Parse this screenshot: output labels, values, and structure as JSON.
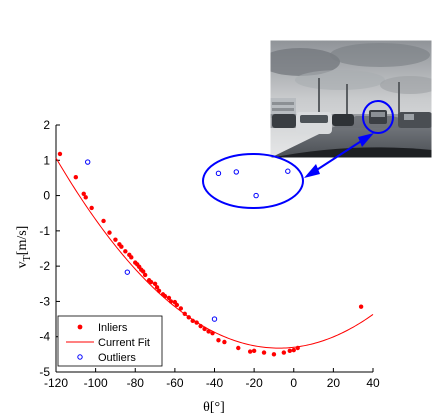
{
  "chart_data": {
    "type": "scatter",
    "xlabel": "θ[°]",
    "ylabel_main": "v",
    "ylabel_sub": "T",
    "ylabel_unit": "[m/s]",
    "xlim": [
      -120,
      40
    ],
    "ylim": [
      -5,
      2
    ],
    "xticks": [
      -120,
      -100,
      -80,
      -60,
      -40,
      -20,
      0,
      20,
      40
    ],
    "yticks": [
      -5,
      -4,
      -3,
      -2,
      -1,
      0,
      1,
      2
    ],
    "grid": false,
    "legend_position": "bottom-left",
    "series": [
      {
        "name": "Inliers",
        "marker": "filled-circle",
        "color": "#ff0000",
        "x": [
          -118,
          -110,
          -106,
          -105,
          -102,
          -96,
          -93,
          -90,
          -88,
          -87,
          -85,
          -83,
          -82,
          -80,
          -79,
          -78,
          -77,
          -76,
          -75,
          -73,
          -72,
          -70,
          -69,
          -68,
          -66,
          -65,
          -63,
          -62,
          -60,
          -59,
          -57,
          -55,
          -53,
          -51,
          -49,
          -47,
          -45,
          -43,
          -41,
          -38,
          -35,
          -28,
          -22,
          -20,
          -15,
          -10,
          -5,
          -2,
          0,
          2,
          34
        ],
        "y": [
          1.18,
          0.52,
          0.05,
          -0.05,
          -0.35,
          -0.72,
          -1.05,
          -1.25,
          -1.38,
          -1.45,
          -1.58,
          -1.68,
          -1.75,
          -1.9,
          -1.95,
          -2.02,
          -2.1,
          -2.15,
          -2.25,
          -2.4,
          -2.45,
          -2.5,
          -2.6,
          -2.7,
          -2.8,
          -2.85,
          -2.9,
          -3.0,
          -3.02,
          -3.1,
          -3.2,
          -3.35,
          -3.45,
          -3.55,
          -3.6,
          -3.7,
          -3.78,
          -3.85,
          -3.9,
          -4.1,
          -4.15,
          -4.32,
          -4.42,
          -4.4,
          -4.45,
          -4.5,
          -4.45,
          -4.4,
          -4.38,
          -4.32,
          -3.15
        ]
      },
      {
        "name": "Current Fit",
        "marker": "line",
        "color": "#ff0000",
        "model": "quadratic",
        "coefficients": [
          0.000425,
          0.0063,
          -4.3
        ],
        "x_range": [
          -120,
          40
        ]
      },
      {
        "name": "Outliers",
        "marker": "open-circle",
        "color": "#0000ff",
        "x": [
          -104,
          -84,
          -40,
          -38,
          -29,
          -19,
          -3
        ],
        "y": [
          0.95,
          -2.17,
          -3.5,
          0.63,
          0.67,
          0.0,
          0.69
        ]
      }
    ]
  },
  "annotation": {
    "color": "#0000ff",
    "photo_caption": "",
    "ellipse_covers_outliers": true
  }
}
